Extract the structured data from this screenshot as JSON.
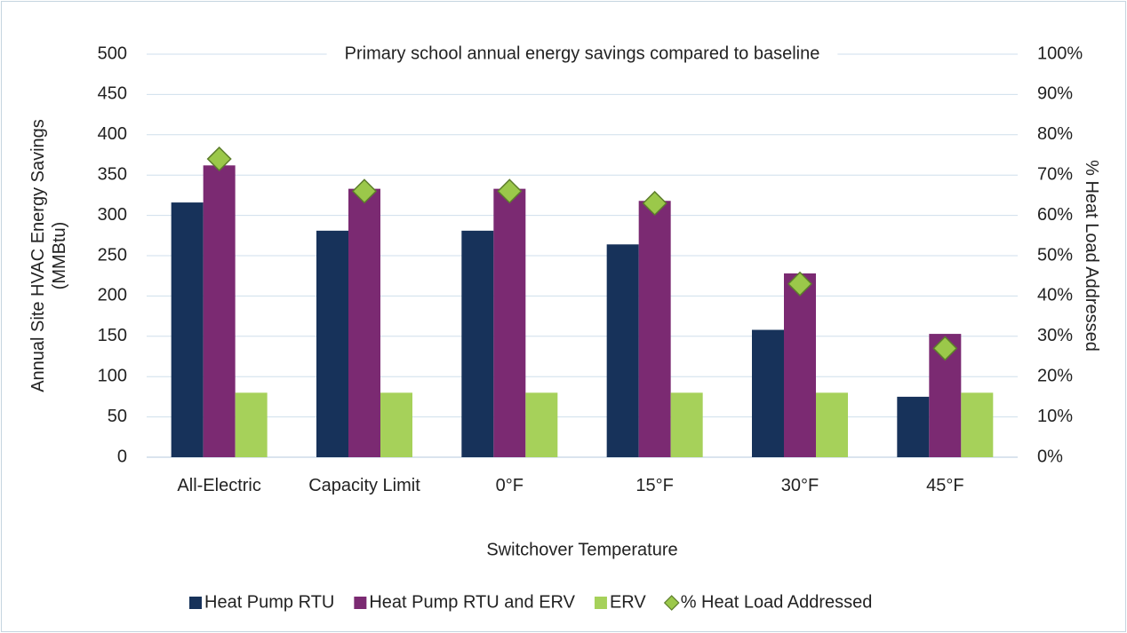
{
  "chart_data": {
    "type": "bar",
    "title": "Primary school annual energy savings compared to baseline",
    "x_label": "Switchover Temperature",
    "y_label": "Annual Site HVAC Energy Savings (MMBtu)",
    "y2_label": "% Heat Load Addressed",
    "categories": [
      "All-Electric",
      "Capacity Limit",
      "0°F",
      "15°F",
      "30°F",
      "45°F"
    ],
    "series": [
      {
        "name": "Heat Pump RTU",
        "color": "#17325a",
        "values": [
          316,
          281,
          281,
          264,
          158,
          75
        ]
      },
      {
        "name": "Heat Pump RTU and ERV",
        "color": "#7b2a72",
        "values": [
          362,
          333,
          333,
          318,
          228,
          153
        ]
      },
      {
        "name": "ERV",
        "color": "#a6d15a",
        "values": [
          80,
          80,
          80,
          80,
          80,
          80
        ]
      },
      {
        "name": "% Heat Load Addressed",
        "color": "#9bc84a",
        "type": "scatter",
        "axis": "y2",
        "values": [
          74,
          66,
          66,
          63,
          43,
          27
        ]
      }
    ],
    "ylim": [
      0,
      500
    ],
    "yticks": [
      0,
      50,
      100,
      150,
      200,
      250,
      300,
      350,
      400,
      450,
      500
    ],
    "y2lim": [
      0,
      100
    ],
    "y2ticks": [
      {
        "value": 0,
        "label": "0%"
      },
      {
        "value": 10,
        "label": "10%"
      },
      {
        "value": 20,
        "label": "20%"
      },
      {
        "value": 30,
        "label": "30%"
      },
      {
        "value": 40,
        "label": "40%"
      },
      {
        "value": 50,
        "label": "50%"
      },
      {
        "value": 60,
        "label": "60%"
      },
      {
        "value": 70,
        "label": "70%"
      },
      {
        "value": 80,
        "label": "80%"
      },
      {
        "value": 90,
        "label": "90%"
      },
      {
        "value": 100,
        "label": "100%"
      }
    ],
    "grid": true,
    "legend": "bottom"
  }
}
